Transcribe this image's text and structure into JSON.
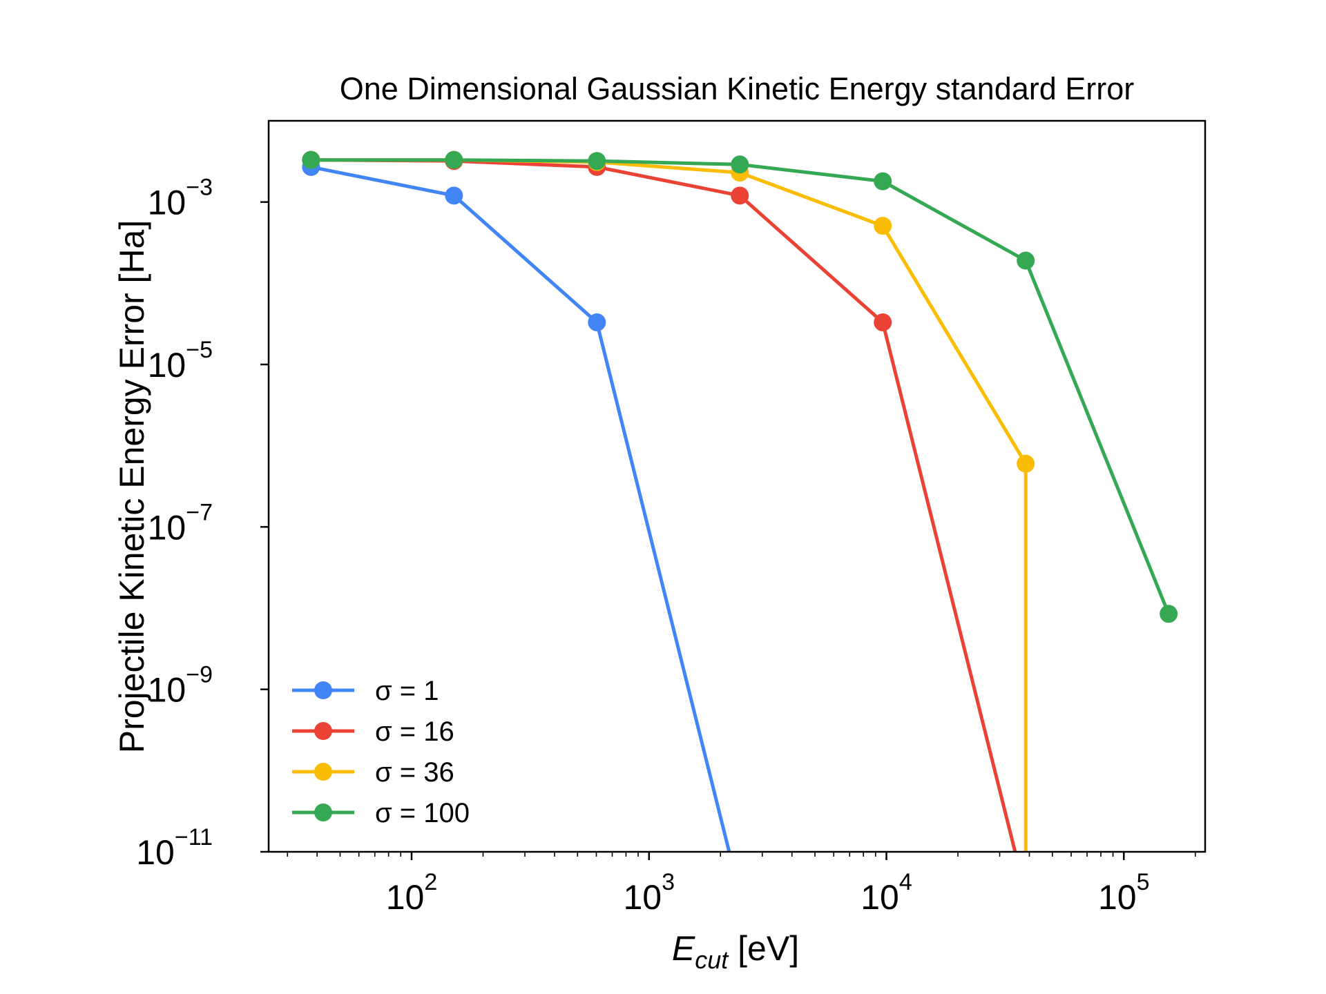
{
  "chart_data": {
    "type": "line",
    "title": "One Dimensional Gaussian Kinetic Energy standard Error",
    "xlabel_main": "E",
    "xlabel_sub": "cut",
    "xlabel_unit": " [eV]",
    "ylabel": "Projectile Kinetic Energy Error [Ha]",
    "xscale": "log",
    "yscale": "log",
    "xlim": [
      25,
      220000
    ],
    "ylim": [
      1e-11,
      0.01
    ],
    "x_ticks": [
      {
        "value": 100,
        "base": "10",
        "exp": "2"
      },
      {
        "value": 1000,
        "base": "10",
        "exp": "3"
      },
      {
        "value": 10000,
        "base": "10",
        "exp": "4"
      },
      {
        "value": 100000,
        "base": "10",
        "exp": "5"
      }
    ],
    "y_ticks": [
      {
        "value": 0.001,
        "base": "10",
        "exp": "−3"
      },
      {
        "value": 1e-05,
        "base": "10",
        "exp": "−5"
      },
      {
        "value": 1e-07,
        "base": "10",
        "exp": "−7"
      },
      {
        "value": 1e-09,
        "base": "10",
        "exp": "−9"
      },
      {
        "value": 1e-11,
        "base": "10",
        "exp": "−11"
      }
    ],
    "grid": false,
    "legend_position": "lower-left",
    "series": [
      {
        "name": "σ = 1",
        "color": "#4285F4",
        "x": [
          37.7,
          150.8,
          603.1,
          2412.4
        ],
        "y": [
          0.0027,
          0.0012,
          3.3e-05,
          3e-12
        ]
      },
      {
        "name": "σ = 16",
        "color": "#EA4335",
        "x": [
          37.7,
          150.8,
          603.1,
          2412.4,
          9649.6,
          38598.4
        ],
        "y": [
          0.0033,
          0.0032,
          0.0027,
          0.0012,
          3.3e-05,
          3e-12
        ]
      },
      {
        "name": "σ = 36",
        "color": "#FBBC04",
        "x": [
          37.7,
          150.8,
          603.1,
          2412.4,
          9649.6,
          38598.4,
          38598.4
        ],
        "y": [
          0.0033,
          0.0033,
          0.0031,
          0.0023,
          0.00051,
          6e-07,
          3e-12
        ]
      },
      {
        "name": "σ = 100",
        "color": "#34A853",
        "x": [
          37.7,
          150.8,
          603.1,
          2412.4,
          9649.6,
          38598.4,
          154393.6
        ],
        "y": [
          0.0033,
          0.0033,
          0.0032,
          0.0029,
          0.0018,
          0.00019,
          8.5e-09
        ]
      }
    ]
  }
}
